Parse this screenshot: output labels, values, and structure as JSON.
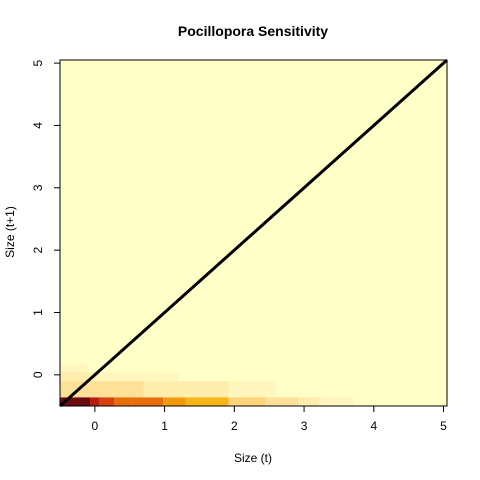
{
  "chart_data": {
    "type": "heatmap",
    "title": "Pocillopora Sensitivity",
    "xlabel": "Size (t)",
    "ylabel": "Size (t+1)",
    "xlim": [
      -0.5,
      5.05
    ],
    "ylim": [
      -0.5,
      5.05
    ],
    "x_ticks": [
      0,
      1,
      2,
      3,
      4,
      5
    ],
    "y_ticks": [
      0,
      1,
      2,
      3,
      4,
      5
    ],
    "background_color": "#FFFFC8",
    "colors": {
      "c0": "#FFFFC8",
      "c1": "#FFF7BD",
      "c2": "#FFEDAE",
      "c3": "#FFE098",
      "c4": "#FFD379",
      "c5": "#F9B41A",
      "c6": "#F29A0C",
      "c7": "#E86E0B",
      "c8": "#D9410C",
      "c9": "#B4200E",
      "c10": "#6D0A0F"
    },
    "cells": [
      {
        "x": [
          -0.5,
          -0.07
        ],
        "y": [
          -0.5,
          -0.36
        ],
        "level": 10
      },
      {
        "x": [
          -0.07,
          0.07
        ],
        "y": [
          -0.5,
          -0.36
        ],
        "level": 9
      },
      {
        "x": [
          0.07,
          0.28
        ],
        "y": [
          -0.5,
          -0.36
        ],
        "level": 8
      },
      {
        "x": [
          0.28,
          0.52
        ],
        "y": [
          -0.5,
          -0.36
        ],
        "level": 7
      },
      {
        "x": [
          0.52,
          0.98
        ],
        "y": [
          -0.5,
          -0.36
        ],
        "level": 7
      },
      {
        "x": [
          0.98,
          1.3
        ],
        "y": [
          -0.5,
          -0.36
        ],
        "level": 6
      },
      {
        "x": [
          1.3,
          1.92
        ],
        "y": [
          -0.5,
          -0.36
        ],
        "level": 5
      },
      {
        "x": [
          1.92,
          2.45
        ],
        "y": [
          -0.5,
          -0.36
        ],
        "level": 4
      },
      {
        "x": [
          2.45,
          2.92
        ],
        "y": [
          -0.5,
          -0.36
        ],
        "level": 3
      },
      {
        "x": [
          2.92,
          3.22
        ],
        "y": [
          -0.5,
          -0.36
        ],
        "level": 2
      },
      {
        "x": [
          3.22,
          3.7
        ],
        "y": [
          -0.5,
          -0.36
        ],
        "level": 1
      },
      {
        "x": [
          -0.5,
          -0.07
        ],
        "y": [
          -0.36,
          -0.1
        ],
        "level": 3
      },
      {
        "x": [
          -0.07,
          0.7
        ],
        "y": [
          -0.36,
          -0.1
        ],
        "level": 3
      },
      {
        "x": [
          0.7,
          1.92
        ],
        "y": [
          -0.36,
          -0.1
        ],
        "level": 2
      },
      {
        "x": [
          1.92,
          2.6
        ],
        "y": [
          -0.36,
          -0.1
        ],
        "level": 1
      },
      {
        "x": [
          -0.5,
          -0.07
        ],
        "y": [
          -0.1,
          0.04
        ],
        "level": 2
      },
      {
        "x": [
          -0.07,
          1.2
        ],
        "y": [
          -0.1,
          0.04
        ],
        "level": 1
      },
      {
        "x": [
          -0.5,
          -0.1
        ],
        "y": [
          0.04,
          0.18
        ],
        "level": 1
      }
    ],
    "line": {
      "x": [
        -0.5,
        5.05
      ],
      "y": [
        -0.5,
        5.05
      ],
      "color": "#000000"
    },
    "grid": false,
    "legend": "none"
  }
}
